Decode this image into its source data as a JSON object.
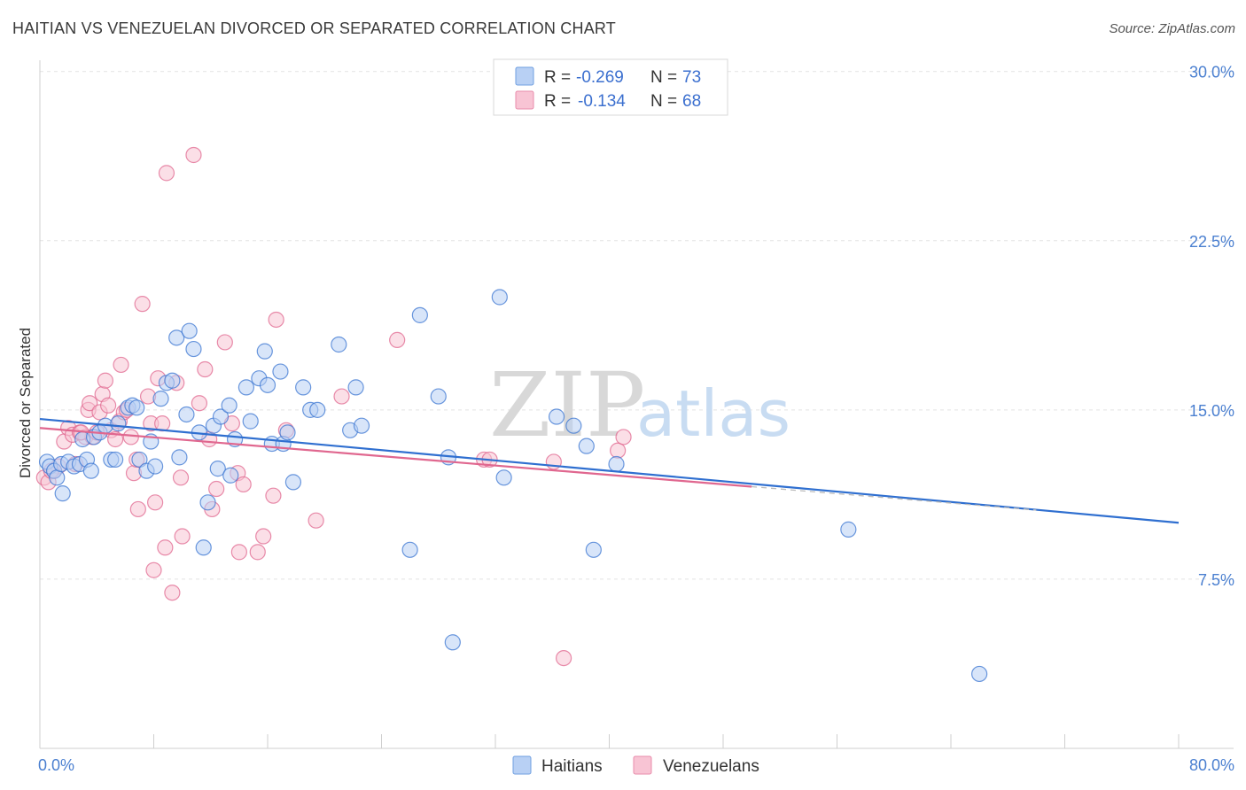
{
  "header": {
    "title": "HAITIAN VS VENEZUELAN DIVORCED OR SEPARATED CORRELATION CHART",
    "source": "Source: ZipAtlas.com"
  },
  "watermark": {
    "zip": "ZIP",
    "atlas": "atlas"
  },
  "legend": {
    "r_label": "R =",
    "n_label": "N =",
    "rows": [
      {
        "r": "-0.269",
        "n": "73",
        "color": "#6f9fe0",
        "fill": "#b8d0f4"
      },
      {
        "r": "-0.134",
        "n": "68",
        "color": "#e98cab",
        "fill": "#f8c4d4"
      }
    ]
  },
  "chart_data": {
    "type": "scatter",
    "title": "HAITIAN VS VENEZUELAN DIVORCED OR SEPARATED CORRELATION CHART",
    "xlabel": "",
    "ylabel": "Divorced or Separated",
    "xlim": [
      0,
      80
    ],
    "ylim": [
      0,
      30.5
    ],
    "x_tick_labels": [
      "0.0%",
      "80.0%"
    ],
    "y_ticks": [
      7.5,
      15.0,
      22.5,
      30.0
    ],
    "y_tick_labels": [
      "7.5%",
      "15.0%",
      "22.5%",
      "30.0%"
    ],
    "grid": true,
    "legend_position": "top-center",
    "series": [
      {
        "name": "Haitians",
        "color": "#3b76d1",
        "fill": "#b8d0f4",
        "trend": {
          "x": [
            0,
            80
          ],
          "y": [
            14.6,
            10.0
          ]
        },
        "points": [
          [
            0.5,
            12.7
          ],
          [
            0.7,
            12.5
          ],
          [
            1.0,
            12.3
          ],
          [
            1.2,
            12.0
          ],
          [
            1.5,
            12.6
          ],
          [
            1.6,
            11.3
          ],
          [
            2.0,
            12.7
          ],
          [
            2.4,
            12.5
          ],
          [
            2.8,
            12.6
          ],
          [
            3.0,
            13.7
          ],
          [
            3.3,
            12.8
          ],
          [
            3.6,
            12.3
          ],
          [
            3.8,
            13.8
          ],
          [
            4.2,
            14.0
          ],
          [
            4.6,
            14.3
          ],
          [
            5.0,
            12.8
          ],
          [
            5.3,
            12.8
          ],
          [
            5.5,
            14.4
          ],
          [
            6.2,
            15.1
          ],
          [
            6.5,
            15.2
          ],
          [
            6.8,
            15.1
          ],
          [
            7.0,
            12.8
          ],
          [
            7.5,
            12.3
          ],
          [
            7.8,
            13.6
          ],
          [
            8.1,
            12.5
          ],
          [
            8.5,
            15.5
          ],
          [
            8.9,
            16.2
          ],
          [
            9.3,
            16.3
          ],
          [
            9.6,
            18.2
          ],
          [
            9.8,
            12.9
          ],
          [
            10.3,
            14.8
          ],
          [
            10.5,
            18.5
          ],
          [
            10.8,
            17.7
          ],
          [
            11.2,
            14.0
          ],
          [
            11.5,
            8.9
          ],
          [
            11.8,
            10.9
          ],
          [
            12.2,
            14.3
          ],
          [
            12.5,
            12.4
          ],
          [
            12.7,
            14.7
          ],
          [
            13.3,
            15.2
          ],
          [
            13.4,
            12.1
          ],
          [
            13.7,
            13.7
          ],
          [
            14.5,
            16.0
          ],
          [
            14.8,
            14.5
          ],
          [
            15.4,
            16.4
          ],
          [
            15.8,
            17.6
          ],
          [
            16.0,
            16.1
          ],
          [
            16.3,
            13.5
          ],
          [
            16.9,
            16.7
          ],
          [
            17.1,
            13.5
          ],
          [
            17.4,
            14.0
          ],
          [
            17.8,
            11.8
          ],
          [
            18.5,
            16.0
          ],
          [
            19.0,
            15.0
          ],
          [
            19.5,
            15.0
          ],
          [
            21.0,
            17.9
          ],
          [
            21.8,
            14.1
          ],
          [
            22.2,
            16.0
          ],
          [
            22.6,
            14.3
          ],
          [
            26.0,
            8.8
          ],
          [
            26.7,
            19.2
          ],
          [
            28.0,
            15.6
          ],
          [
            28.7,
            12.9
          ],
          [
            29.0,
            4.7
          ],
          [
            32.3,
            20.0
          ],
          [
            32.6,
            12.0
          ],
          [
            36.3,
            14.7
          ],
          [
            37.5,
            14.3
          ],
          [
            38.4,
            13.4
          ],
          [
            38.9,
            8.8
          ],
          [
            40.5,
            12.6
          ],
          [
            56.8,
            9.7
          ],
          [
            66.0,
            3.3
          ]
        ]
      },
      {
        "name": "Venezuelans",
        "color": "#e0678f",
        "fill": "#f8c4d4",
        "trend": {
          "x": [
            0,
            50
          ],
          "y": [
            14.2,
            11.6
          ]
        },
        "points": [
          [
            0.3,
            12.0
          ],
          [
            0.6,
            11.8
          ],
          [
            1.0,
            12.3
          ],
          [
            1.3,
            12.5
          ],
          [
            1.7,
            13.6
          ],
          [
            2.0,
            14.2
          ],
          [
            2.3,
            13.9
          ],
          [
            2.5,
            12.6
          ],
          [
            2.8,
            14.0
          ],
          [
            3.2,
            13.8
          ],
          [
            3.4,
            15.0
          ],
          [
            3.5,
            15.3
          ],
          [
            3.7,
            13.8
          ],
          [
            4.0,
            14.0
          ],
          [
            4.2,
            14.9
          ],
          [
            4.4,
            15.7
          ],
          [
            4.6,
            16.3
          ],
          [
            4.8,
            15.2
          ],
          [
            5.0,
            14.1
          ],
          [
            5.3,
            13.7
          ],
          [
            5.6,
            14.5
          ],
          [
            5.7,
            17.0
          ],
          [
            5.9,
            14.9
          ],
          [
            6.1,
            15.0
          ],
          [
            6.4,
            13.8
          ],
          [
            6.6,
            12.2
          ],
          [
            6.8,
            12.8
          ],
          [
            6.9,
            10.6
          ],
          [
            7.2,
            19.7
          ],
          [
            7.6,
            15.6
          ],
          [
            7.8,
            14.4
          ],
          [
            8.0,
            7.9
          ],
          [
            8.1,
            10.9
          ],
          [
            8.3,
            16.4
          ],
          [
            8.6,
            14.4
          ],
          [
            8.8,
            8.9
          ],
          [
            8.9,
            25.5
          ],
          [
            9.3,
            6.9
          ],
          [
            9.6,
            16.2
          ],
          [
            9.9,
            12.0
          ],
          [
            10.0,
            9.4
          ],
          [
            10.8,
            26.3
          ],
          [
            11.2,
            15.3
          ],
          [
            11.6,
            16.8
          ],
          [
            11.9,
            13.7
          ],
          [
            12.1,
            10.6
          ],
          [
            12.4,
            11.5
          ],
          [
            13.0,
            18.0
          ],
          [
            13.5,
            14.4
          ],
          [
            13.9,
            12.2
          ],
          [
            14.0,
            8.7
          ],
          [
            14.3,
            11.7
          ],
          [
            15.3,
            8.7
          ],
          [
            15.7,
            9.4
          ],
          [
            16.4,
            11.2
          ],
          [
            16.6,
            19.0
          ],
          [
            17.3,
            14.1
          ],
          [
            19.4,
            10.1
          ],
          [
            21.2,
            15.6
          ],
          [
            25.1,
            18.1
          ],
          [
            31.2,
            12.8
          ],
          [
            31.6,
            12.8
          ],
          [
            36.1,
            12.7
          ],
          [
            36.8,
            4.0
          ],
          [
            40.6,
            13.2
          ],
          [
            41.0,
            13.8
          ],
          [
            0.8,
            12.3
          ],
          [
            2.9,
            14.0
          ]
        ]
      }
    ]
  }
}
